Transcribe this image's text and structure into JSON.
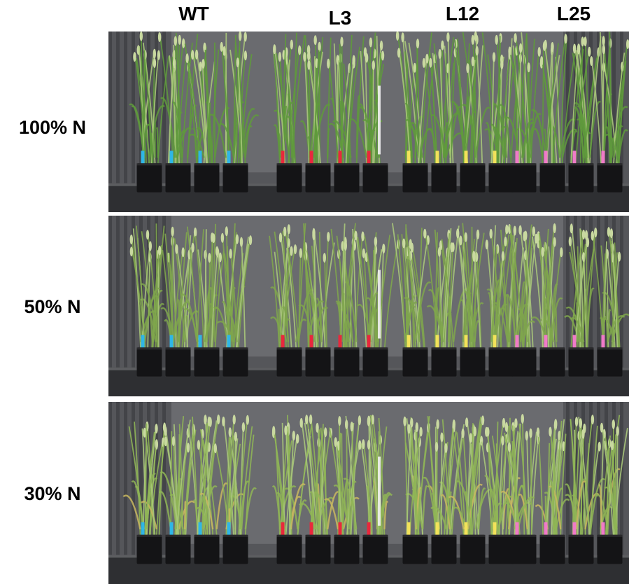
{
  "figure": {
    "column_labels": [
      "WT",
      "L3",
      "L12",
      "L25"
    ],
    "row_labels": [
      "100% N",
      "50% N",
      "30% N"
    ],
    "tag_colors": {
      "WT": "#2fb6e6",
      "L3": "#e8283c",
      "L12": "#f2e25a",
      "L25": "#f07ac8"
    },
    "panels": [
      {
        "treatment": "100% N",
        "plant_vigor": 1.0,
        "leaf_color": "#5f9a3c"
      },
      {
        "treatment": "50% N",
        "plant_vigor": 0.78,
        "leaf_color": "#7fa64c"
      },
      {
        "treatment": "30% N",
        "plant_vigor": 0.62,
        "leaf_color": "#8fb556"
      }
    ]
  }
}
